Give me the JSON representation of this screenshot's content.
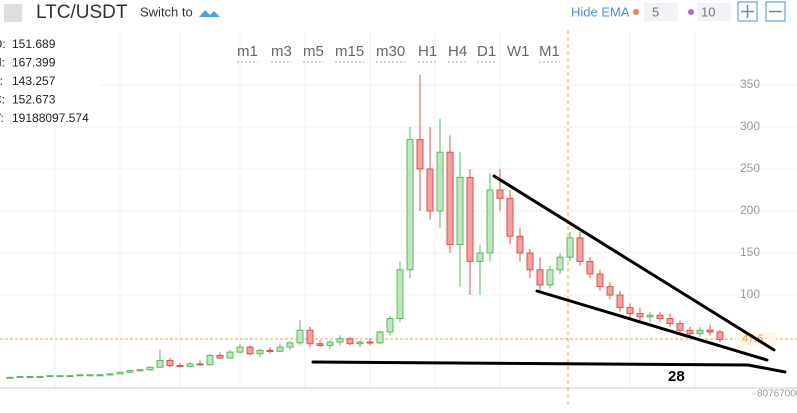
{
  "header": {
    "pair": "LTC/USDT",
    "switch": "Switch to",
    "hide_ema": "Hide EMA",
    "ema_fast": "5",
    "ema_slow": "10"
  },
  "info": [
    {
      "label": "O:",
      "value": 151.689
    },
    {
      "label": "H:",
      "value": 167.399
    },
    {
      "label": "L:",
      "value": 143.257
    },
    {
      "label": "C:",
      "value": 152.673
    },
    {
      "label": "V:",
      "value": 19188097.574
    }
  ],
  "intervals": [
    "m1",
    "m3",
    "m5",
    "m15",
    "m30",
    "H1",
    "H4",
    "D1",
    "W1",
    "M1"
  ],
  "annotation": "28",
  "chart_data": {
    "type": "candlestick",
    "ylim": [
      -10,
      400
    ],
    "yticks": [
      100,
      150,
      200,
      250,
      300,
      350
    ],
    "up_color": "#5cb85c",
    "down_color": "#d9534f",
    "last_price": 47.6,
    "last_color": "#f0a030",
    "volume_ticks": [
      80767000
    ],
    "ohlc": [
      [
        2,
        3,
        2,
        2
      ],
      [
        2,
        3,
        2,
        3
      ],
      [
        3,
        3,
        2,
        3
      ],
      [
        3,
        4,
        3,
        3
      ],
      [
        3,
        4,
        3,
        4
      ],
      [
        4,
        4,
        3,
        4
      ],
      [
        4,
        5,
        4,
        4
      ],
      [
        4,
        5,
        4,
        5
      ],
      [
        5,
        6,
        4,
        5
      ],
      [
        5,
        6,
        5,
        5
      ],
      [
        5,
        7,
        5,
        6
      ],
      [
        6,
        9,
        6,
        8
      ],
      [
        8,
        11,
        7,
        10
      ],
      [
        10,
        12,
        9,
        11
      ],
      [
        11,
        15,
        10,
        14
      ],
      [
        14,
        35,
        13,
        22
      ],
      [
        22,
        25,
        14,
        16
      ],
      [
        16,
        19,
        14,
        15
      ],
      [
        15,
        20,
        14,
        18
      ],
      [
        18,
        22,
        16,
        17
      ],
      [
        17,
        30,
        16,
        28
      ],
      [
        28,
        32,
        24,
        25
      ],
      [
        25,
        35,
        24,
        32
      ],
      [
        32,
        42,
        30,
        38
      ],
      [
        38,
        40,
        28,
        30
      ],
      [
        30,
        36,
        26,
        34
      ],
      [
        34,
        38,
        30,
        33
      ],
      [
        33,
        42,
        32,
        38
      ],
      [
        38,
        45,
        35,
        43
      ],
      [
        43,
        70,
        40,
        58
      ],
      [
        58,
        62,
        38,
        42
      ],
      [
        42,
        46,
        38,
        40
      ],
      [
        40,
        46,
        36,
        44
      ],
      [
        44,
        52,
        40,
        48
      ],
      [
        48,
        50,
        40,
        42
      ],
      [
        42,
        46,
        38,
        44
      ],
      [
        44,
        48,
        40,
        43
      ],
      [
        43,
        58,
        42,
        56
      ],
      [
        56,
        75,
        52,
        72
      ],
      [
        72,
        140,
        68,
        130
      ],
      [
        130,
        300,
        120,
        285
      ],
      [
        285,
        362,
        200,
        250
      ],
      [
        250,
        300,
        190,
        200
      ],
      [
        200,
        310,
        180,
        270
      ],
      [
        270,
        290,
        150,
        160
      ],
      [
        160,
        270,
        110,
        240
      ],
      [
        240,
        250,
        100,
        140
      ],
      [
        140,
        160,
        100,
        150
      ],
      [
        150,
        245,
        140,
        225
      ],
      [
        225,
        250,
        200,
        215
      ],
      [
        215,
        225,
        160,
        170
      ],
      [
        170,
        180,
        140,
        150
      ],
      [
        150,
        155,
        120,
        130
      ],
      [
        130,
        145,
        105,
        112
      ],
      [
        112,
        135,
        108,
        130
      ],
      [
        130,
        150,
        125,
        145
      ],
      [
        145,
        175,
        140,
        168
      ],
      [
        168,
        175,
        135,
        140
      ],
      [
        140,
        145,
        120,
        125
      ],
      [
        125,
        130,
        105,
        110
      ],
      [
        110,
        115,
        95,
        100
      ],
      [
        100,
        105,
        80,
        85
      ],
      [
        85,
        90,
        72,
        78
      ],
      [
        78,
        85,
        70,
        74
      ],
      [
        74,
        80,
        68,
        76
      ],
      [
        76,
        80,
        68,
        72
      ],
      [
        72,
        78,
        62,
        66
      ],
      [
        66,
        70,
        55,
        58
      ],
      [
        58,
        62,
        50,
        54
      ],
      [
        54,
        62,
        50,
        58
      ],
      [
        58,
        65,
        52,
        56
      ],
      [
        56,
        58,
        44,
        47
      ]
    ]
  }
}
